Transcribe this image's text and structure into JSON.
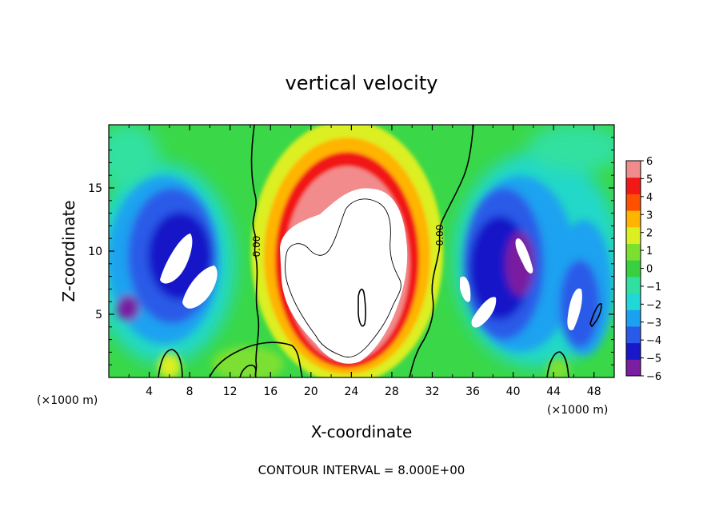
{
  "chart_data": {
    "type": "heatmap",
    "title": "vertical velocity",
    "xlabel": "X-coordinate",
    "ylabel": "Z-coordinate",
    "x_unit_left": "(×1000 m)",
    "x_unit_right": "(×1000 m)",
    "xlim": [
      0,
      50
    ],
    "ylim": [
      0,
      20
    ],
    "x_ticks": [
      4,
      8,
      12,
      16,
      20,
      24,
      28,
      32,
      36,
      40,
      44,
      48
    ],
    "y_ticks": [
      5,
      10,
      15
    ],
    "colorbar": {
      "min": -6,
      "max": 6,
      "ticks": [
        6,
        5,
        4,
        3,
        2,
        1,
        0,
        -1,
        -2,
        -3,
        -4,
        -5,
        -6
      ],
      "tick_labels": [
        "6",
        "5",
        "4",
        "3",
        "2",
        "1",
        "0",
        "−1",
        "−2",
        "−3",
        "−4",
        "−5",
        "−6"
      ],
      "colors": [
        "#7a1fa0",
        "#1818c8",
        "#2a5ae8",
        "#1aa2f0",
        "#20d8d8",
        "#30e0a0",
        "#38d040",
        "#7ce030",
        "#dcef20",
        "#ffb400",
        "#ff5000",
        "#f21818",
        "#f28c8c"
      ]
    },
    "contour_labels": [
      {
        "text": "0.00",
        "x": 14.6,
        "y": 10.5
      },
      {
        "text": "0.00",
        "x": 32.8,
        "y": 11.2
      }
    ],
    "features": [
      {
        "kind": "updraft",
        "x": 24,
        "z": 8,
        "peak_value": 6
      },
      {
        "kind": "downdraft",
        "x": 7,
        "z": 9,
        "peak_value": -6
      },
      {
        "kind": "downdraft",
        "x": 41,
        "z": 8,
        "peak_value": -6
      }
    ],
    "footer": "CONTOUR INTERVAL = 8.000E+00"
  }
}
